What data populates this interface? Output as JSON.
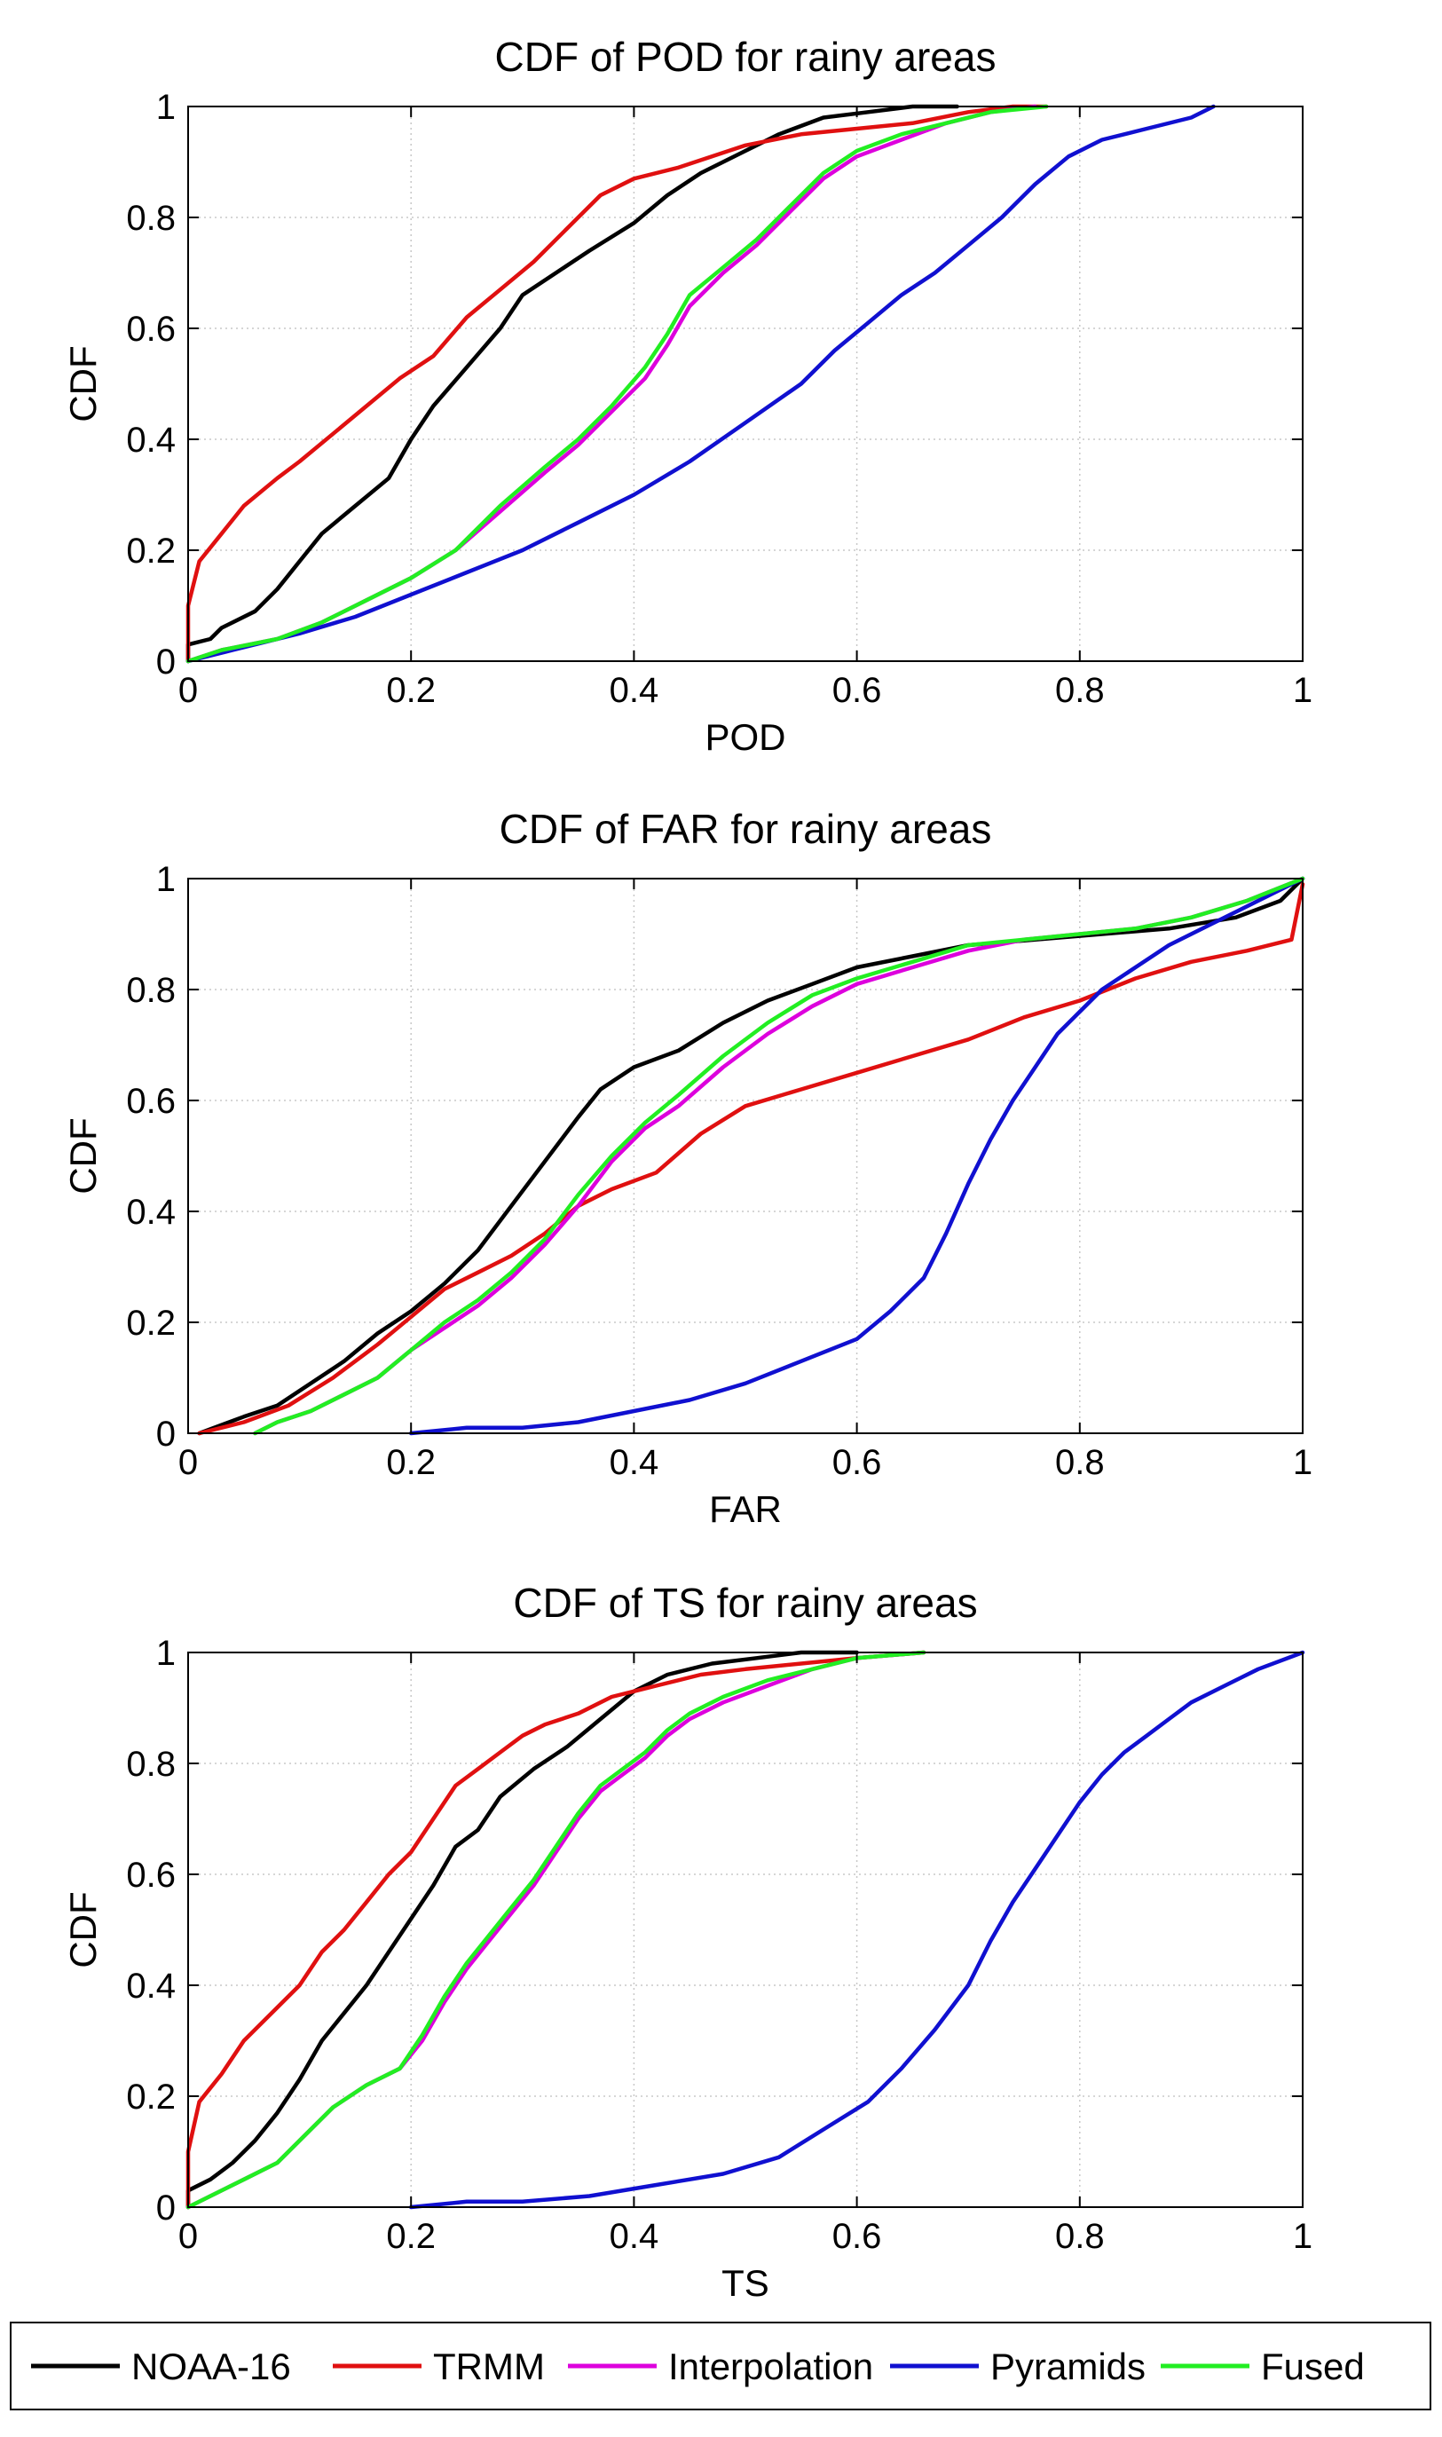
{
  "colors": {
    "NOAA-16": "#000000",
    "TRMM": "#e01010",
    "Interpolation": "#dd00dd",
    "Pyramids": "#1010d0",
    "Fused": "#22ee22"
  },
  "legend": {
    "items": [
      "NOAA-16",
      "TRMM",
      "Interpolation",
      "Pyramids",
      "Fused"
    ]
  },
  "chart_data": [
    {
      "type": "line",
      "title": "CDF of POD for rainy areas",
      "xlabel": "POD",
      "ylabel": "CDF",
      "xlim": [
        0,
        1
      ],
      "ylim": [
        0,
        1
      ],
      "xticks": [
        "0",
        "0.2",
        "0.4",
        "0.6",
        "0.8",
        "1"
      ],
      "yticks": [
        "0",
        "0.2",
        "0.4",
        "0.6",
        "0.8",
        "1"
      ],
      "grid": true,
      "series": [
        {
          "name": "NOAA-16",
          "x": [
            0,
            0,
            0.02,
            0.03,
            0.06,
            0.08,
            0.1,
            0.12,
            0.15,
            0.18,
            0.2,
            0.22,
            0.25,
            0.28,
            0.3,
            0.33,
            0.36,
            0.4,
            0.43,
            0.46,
            0.5,
            0.53,
            0.57,
            0.61,
            0.65,
            0.69
          ],
          "y": [
            0,
            0.03,
            0.04,
            0.06,
            0.09,
            0.13,
            0.18,
            0.23,
            0.28,
            0.33,
            0.4,
            0.46,
            0.53,
            0.6,
            0.66,
            0.7,
            0.74,
            0.79,
            0.84,
            0.88,
            0.92,
            0.95,
            0.98,
            0.99,
            1.0,
            1.0
          ]
        },
        {
          "name": "TRMM",
          "x": [
            0,
            0,
            0.01,
            0.03,
            0.05,
            0.08,
            0.1,
            0.13,
            0.16,
            0.19,
            0.22,
            0.25,
            0.28,
            0.31,
            0.34,
            0.37,
            0.4,
            0.44,
            0.47,
            0.5,
            0.55,
            0.6,
            0.65,
            0.7,
            0.74,
            0.77
          ],
          "y": [
            0,
            0.1,
            0.18,
            0.23,
            0.28,
            0.33,
            0.36,
            0.41,
            0.46,
            0.51,
            0.55,
            0.62,
            0.67,
            0.72,
            0.78,
            0.84,
            0.87,
            0.89,
            0.91,
            0.93,
            0.95,
            0.96,
            0.97,
            0.99,
            1.0,
            1.0
          ]
        },
        {
          "name": "Interpolation",
          "x": [
            0,
            0.03,
            0.08,
            0.12,
            0.16,
            0.2,
            0.24,
            0.28,
            0.32,
            0.35,
            0.38,
            0.41,
            0.43,
            0.45,
            0.48,
            0.51,
            0.54,
            0.57,
            0.6,
            0.64,
            0.68,
            0.72,
            0.76
          ],
          "y": [
            0,
            0.02,
            0.04,
            0.07,
            0.11,
            0.15,
            0.2,
            0.27,
            0.34,
            0.39,
            0.45,
            0.51,
            0.57,
            0.64,
            0.7,
            0.75,
            0.81,
            0.87,
            0.91,
            0.94,
            0.97,
            0.99,
            1.0
          ]
        },
        {
          "name": "Pyramids",
          "x": [
            0,
            0.04,
            0.1,
            0.15,
            0.2,
            0.25,
            0.3,
            0.35,
            0.4,
            0.45,
            0.5,
            0.55,
            0.58,
            0.61,
            0.64,
            0.67,
            0.7,
            0.73,
            0.76,
            0.79,
            0.82,
            0.86,
            0.9,
            0.92
          ],
          "y": [
            0,
            0.02,
            0.05,
            0.08,
            0.12,
            0.16,
            0.2,
            0.25,
            0.3,
            0.36,
            0.43,
            0.5,
            0.56,
            0.61,
            0.66,
            0.7,
            0.75,
            0.8,
            0.86,
            0.91,
            0.94,
            0.96,
            0.98,
            1.0
          ]
        },
        {
          "name": "Fused",
          "x": [
            0,
            0.03,
            0.08,
            0.12,
            0.16,
            0.2,
            0.24,
            0.28,
            0.32,
            0.35,
            0.38,
            0.41,
            0.43,
            0.45,
            0.48,
            0.51,
            0.54,
            0.57,
            0.6,
            0.64,
            0.68,
            0.72,
            0.77
          ],
          "y": [
            0,
            0.02,
            0.04,
            0.07,
            0.11,
            0.15,
            0.2,
            0.28,
            0.35,
            0.4,
            0.46,
            0.53,
            0.59,
            0.66,
            0.71,
            0.76,
            0.82,
            0.88,
            0.92,
            0.95,
            0.97,
            0.99,
            1.0
          ]
        }
      ]
    },
    {
      "type": "line",
      "title": "CDF of FAR for rainy areas",
      "xlabel": "FAR",
      "ylabel": "CDF",
      "xlim": [
        0,
        1
      ],
      "ylim": [
        0,
        1
      ],
      "xticks": [
        "0",
        "0.2",
        "0.4",
        "0.6",
        "0.8",
        "1"
      ],
      "yticks": [
        "0",
        "0.2",
        "0.4",
        "0.6",
        "0.8",
        "1"
      ],
      "grid": true,
      "series": [
        {
          "name": "NOAA-16",
          "x": [
            0.01,
            0.05,
            0.08,
            0.11,
            0.14,
            0.17,
            0.2,
            0.23,
            0.26,
            0.29,
            0.32,
            0.35,
            0.37,
            0.4,
            0.44,
            0.48,
            0.52,
            0.56,
            0.6,
            0.65,
            0.7,
            0.76,
            0.82,
            0.88,
            0.94,
            0.98,
            1.0
          ],
          "y": [
            0.0,
            0.03,
            0.05,
            0.09,
            0.13,
            0.18,
            0.22,
            0.27,
            0.33,
            0.41,
            0.49,
            0.57,
            0.62,
            0.66,
            0.69,
            0.74,
            0.78,
            0.81,
            0.84,
            0.86,
            0.88,
            0.89,
            0.9,
            0.91,
            0.93,
            0.96,
            1.0
          ]
        },
        {
          "name": "TRMM",
          "x": [
            0.01,
            0.05,
            0.09,
            0.13,
            0.17,
            0.2,
            0.23,
            0.26,
            0.29,
            0.32,
            0.35,
            0.38,
            0.42,
            0.46,
            0.5,
            0.55,
            0.6,
            0.65,
            0.7,
            0.75,
            0.8,
            0.85,
            0.9,
            0.95,
            0.99,
            1.0
          ],
          "y": [
            0.0,
            0.02,
            0.05,
            0.1,
            0.16,
            0.21,
            0.26,
            0.29,
            0.32,
            0.36,
            0.41,
            0.44,
            0.47,
            0.54,
            0.59,
            0.62,
            0.65,
            0.68,
            0.71,
            0.75,
            0.78,
            0.82,
            0.85,
            0.87,
            0.89,
            0.99
          ]
        },
        {
          "name": "Interpolation",
          "x": [
            0.06,
            0.08,
            0.11,
            0.14,
            0.17,
            0.2,
            0.23,
            0.26,
            0.29,
            0.32,
            0.35,
            0.38,
            0.41,
            0.44,
            0.48,
            0.52,
            0.56,
            0.6,
            0.65,
            0.7,
            0.75,
            0.8,
            0.85,
            0.9,
            0.95,
            1.0
          ],
          "y": [
            0.0,
            0.02,
            0.04,
            0.07,
            0.1,
            0.15,
            0.19,
            0.23,
            0.28,
            0.34,
            0.41,
            0.49,
            0.55,
            0.59,
            0.66,
            0.72,
            0.77,
            0.81,
            0.84,
            0.87,
            0.89,
            0.9,
            0.91,
            0.93,
            0.96,
            1.0
          ]
        },
        {
          "name": "Pyramids",
          "x": [
            0.2,
            0.25,
            0.3,
            0.35,
            0.4,
            0.45,
            0.5,
            0.55,
            0.6,
            0.63,
            0.66,
            0.68,
            0.7,
            0.72,
            0.74,
            0.76,
            0.78,
            0.8,
            0.82,
            0.85,
            0.88,
            0.92,
            0.96,
            1.0
          ],
          "y": [
            0.0,
            0.01,
            0.01,
            0.02,
            0.04,
            0.06,
            0.09,
            0.13,
            0.17,
            0.22,
            0.28,
            0.36,
            0.45,
            0.53,
            0.6,
            0.66,
            0.72,
            0.76,
            0.8,
            0.84,
            0.88,
            0.92,
            0.96,
            1.0
          ]
        },
        {
          "name": "Fused",
          "x": [
            0.06,
            0.08,
            0.11,
            0.14,
            0.17,
            0.2,
            0.23,
            0.26,
            0.29,
            0.32,
            0.35,
            0.38,
            0.41,
            0.44,
            0.48,
            0.52,
            0.56,
            0.6,
            0.65,
            0.7,
            0.75,
            0.8,
            0.85,
            0.9,
            0.95,
            1.0
          ],
          "y": [
            0.0,
            0.02,
            0.04,
            0.07,
            0.1,
            0.15,
            0.2,
            0.24,
            0.29,
            0.35,
            0.43,
            0.5,
            0.56,
            0.61,
            0.68,
            0.74,
            0.79,
            0.82,
            0.85,
            0.88,
            0.89,
            0.9,
            0.91,
            0.93,
            0.96,
            1.0
          ]
        }
      ]
    },
    {
      "type": "line",
      "title": "CDF of TS for rainy areas",
      "xlabel": "TS",
      "ylabel": "CDF",
      "xlim": [
        0,
        1
      ],
      "ylim": [
        0,
        1
      ],
      "xticks": [
        "0",
        "0.2",
        "0.4",
        "0.6",
        "0.8",
        "1"
      ],
      "yticks": [
        "0",
        "0.2",
        "0.4",
        "0.6",
        "0.8",
        "1"
      ],
      "grid": true,
      "series": [
        {
          "name": "NOAA-16",
          "x": [
            0,
            0,
            0.02,
            0.04,
            0.06,
            0.08,
            0.1,
            0.12,
            0.14,
            0.16,
            0.18,
            0.2,
            0.22,
            0.24,
            0.26,
            0.28,
            0.31,
            0.34,
            0.37,
            0.4,
            0.43,
            0.47,
            0.51,
            0.55,
            0.6
          ],
          "y": [
            0,
            0.03,
            0.05,
            0.08,
            0.12,
            0.17,
            0.23,
            0.3,
            0.35,
            0.4,
            0.46,
            0.52,
            0.58,
            0.65,
            0.68,
            0.74,
            0.79,
            0.83,
            0.88,
            0.93,
            0.96,
            0.98,
            0.99,
            1.0,
            1.0
          ]
        },
        {
          "name": "TRMM",
          "x": [
            0,
            0,
            0.01,
            0.03,
            0.05,
            0.08,
            0.1,
            0.12,
            0.14,
            0.16,
            0.18,
            0.2,
            0.22,
            0.24,
            0.26,
            0.28,
            0.3,
            0.32,
            0.35,
            0.38,
            0.42,
            0.46,
            0.5,
            0.55,
            0.6,
            0.66
          ],
          "y": [
            0,
            0.1,
            0.19,
            0.24,
            0.3,
            0.36,
            0.4,
            0.46,
            0.5,
            0.55,
            0.6,
            0.64,
            0.7,
            0.76,
            0.79,
            0.82,
            0.85,
            0.87,
            0.89,
            0.92,
            0.94,
            0.96,
            0.97,
            0.98,
            0.99,
            1.0
          ]
        },
        {
          "name": "Interpolation",
          "x": [
            0,
            0.02,
            0.05,
            0.08,
            0.1,
            0.13,
            0.16,
            0.19,
            0.21,
            0.23,
            0.25,
            0.27,
            0.29,
            0.31,
            0.33,
            0.35,
            0.37,
            0.39,
            0.41,
            0.43,
            0.45,
            0.48,
            0.52,
            0.56,
            0.6,
            0.66
          ],
          "y": [
            0,
            0.02,
            0.05,
            0.08,
            0.12,
            0.18,
            0.22,
            0.25,
            0.3,
            0.37,
            0.43,
            0.48,
            0.53,
            0.58,
            0.64,
            0.7,
            0.75,
            0.78,
            0.81,
            0.85,
            0.88,
            0.91,
            0.94,
            0.97,
            0.99,
            1.0
          ]
        },
        {
          "name": "Pyramids",
          "x": [
            0.2,
            0.25,
            0.3,
            0.36,
            0.42,
            0.48,
            0.53,
            0.57,
            0.61,
            0.64,
            0.67,
            0.7,
            0.72,
            0.74,
            0.76,
            0.78,
            0.8,
            0.82,
            0.84,
            0.86,
            0.88,
            0.9,
            0.93,
            0.96,
            1.0
          ],
          "y": [
            0.0,
            0.01,
            0.01,
            0.02,
            0.04,
            0.06,
            0.09,
            0.14,
            0.19,
            0.25,
            0.32,
            0.4,
            0.48,
            0.55,
            0.61,
            0.67,
            0.73,
            0.78,
            0.82,
            0.85,
            0.88,
            0.91,
            0.94,
            0.97,
            1.0
          ]
        },
        {
          "name": "Fused",
          "x": [
            0,
            0.02,
            0.05,
            0.08,
            0.1,
            0.13,
            0.16,
            0.19,
            0.21,
            0.23,
            0.25,
            0.27,
            0.29,
            0.31,
            0.33,
            0.35,
            0.37,
            0.39,
            0.41,
            0.43,
            0.45,
            0.48,
            0.52,
            0.56,
            0.6,
            0.66
          ],
          "y": [
            0,
            0.02,
            0.05,
            0.08,
            0.12,
            0.18,
            0.22,
            0.25,
            0.31,
            0.38,
            0.44,
            0.49,
            0.54,
            0.59,
            0.65,
            0.71,
            0.76,
            0.79,
            0.82,
            0.86,
            0.89,
            0.92,
            0.95,
            0.97,
            0.99,
            1.0
          ]
        }
      ]
    }
  ]
}
